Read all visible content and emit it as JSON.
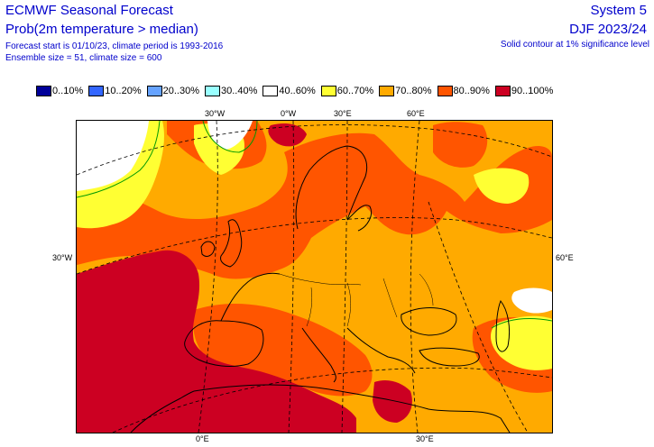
{
  "header": {
    "title": "ECMWF Seasonal Forecast",
    "subtitle": "Prob(2m temperature > median)",
    "forecast_info": "Forecast start is 01/10/23, climate period is 1993-2016",
    "ensemble_info": "Ensemble size = 51, climate size = 600",
    "system": "System 5",
    "season": "DJF 2023/24",
    "note": "Solid contour at 1% significance level"
  },
  "legend": [
    {
      "label": "0..10%",
      "color": "#000099"
    },
    {
      "label": "10..20%",
      "color": "#3366ff"
    },
    {
      "label": "20..30%",
      "color": "#66a3ff"
    },
    {
      "label": "30..40%",
      "color": "#99ffff"
    },
    {
      "label": "40..60%",
      "color": "#ffffff"
    },
    {
      "label": "60..70%",
      "color": "#ffff33"
    },
    {
      "label": "70..80%",
      "color": "#ffaa00"
    },
    {
      "label": "80..90%",
      "color": "#ff5500"
    },
    {
      "label": "90..100%",
      "color": "#cc0022"
    }
  ],
  "map": {
    "region": "Europe",
    "top_ticks": [
      "30°W",
      "0°W",
      "30°E",
      "60°E"
    ],
    "bottom_ticks": [
      "0°E",
      "30°E"
    ],
    "left_tick": "30°W",
    "right_tick": "60°E"
  }
}
